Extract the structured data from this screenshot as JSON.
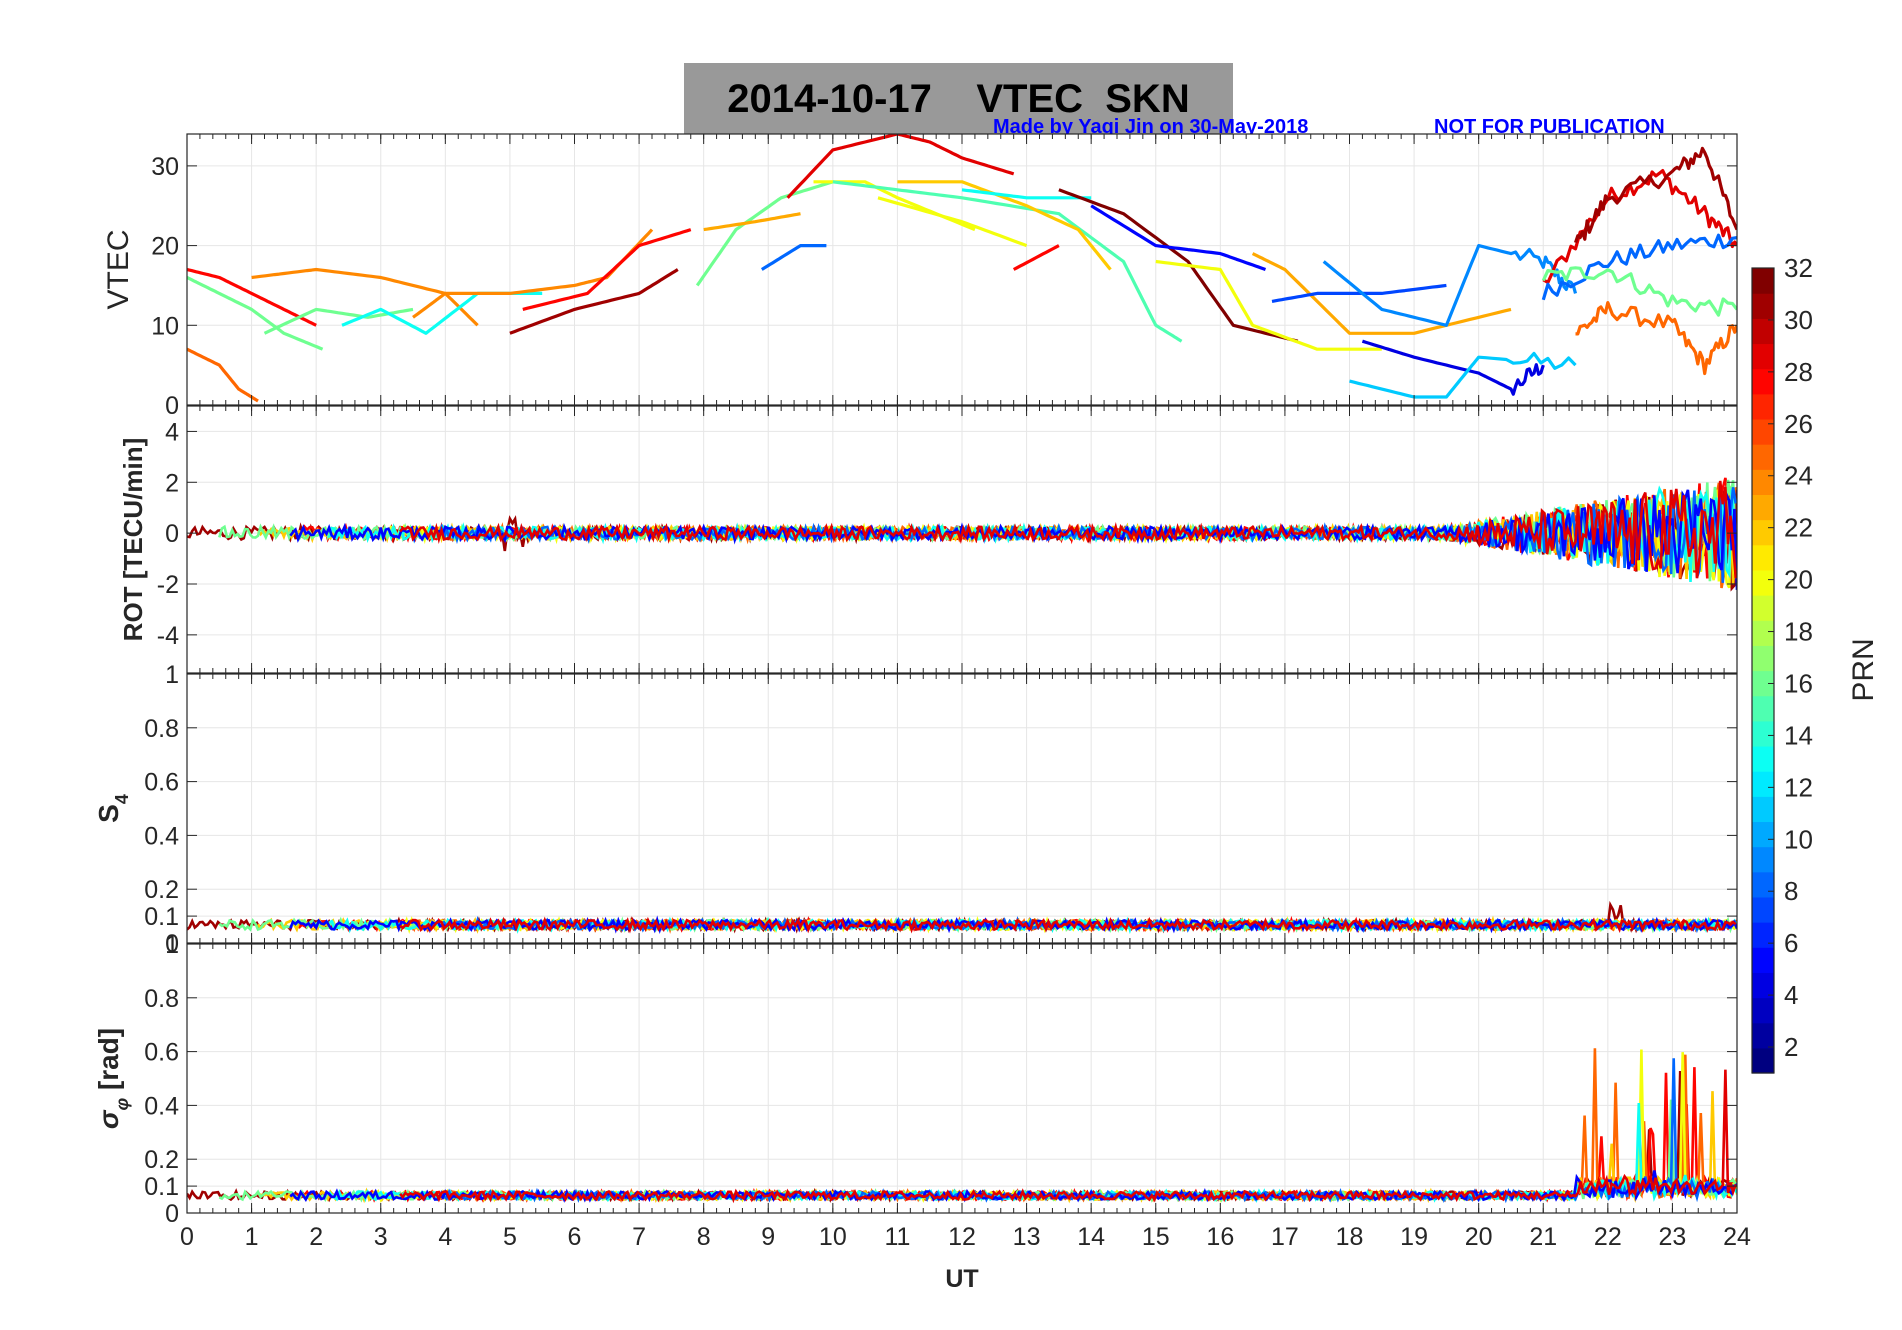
{
  "header": {
    "title_date": "2014-10-17",
    "title_text": "VTEC  SKN",
    "credit": "Made by Yaqi Jin on 30-May-2018",
    "notice": "NOT FOR PUBLICATION"
  },
  "colorbar": {
    "label": "PRN",
    "ticks": [
      2,
      4,
      6,
      8,
      10,
      12,
      14,
      16,
      18,
      20,
      22,
      24,
      26,
      28,
      30,
      32
    ],
    "range": [
      1,
      32
    ],
    "colormap": "jet"
  },
  "chart_data": [
    {
      "type": "line",
      "ylabel": "VTEC",
      "ylim": [
        0,
        34
      ],
      "yticks": [
        0,
        10,
        20,
        30
      ],
      "xlim": [
        0,
        24
      ],
      "grid": true,
      "series": [
        {
          "prn": 28,
          "x": [
            0,
            0.5,
            1,
            1.5,
            2
          ],
          "y": [
            17,
            16,
            14,
            12,
            10
          ]
        },
        {
          "prn": 16,
          "x": [
            0,
            0.5,
            1,
            1.5,
            2.1
          ],
          "y": [
            16,
            14,
            12,
            9,
            7
          ]
        },
        {
          "prn": 25,
          "x": [
            0,
            0.5,
            0.8,
            1.1
          ],
          "y": [
            7,
            5,
            2,
            0.5
          ]
        },
        {
          "prn": 24,
          "x": [
            1,
            2,
            3,
            4,
            4.5
          ],
          "y": [
            16,
            17,
            16,
            14,
            10
          ]
        },
        {
          "prn": 16,
          "x": [
            1.2,
            2,
            2.8,
            3.5
          ],
          "y": [
            9,
            12,
            11,
            12
          ]
        },
        {
          "prn": 13,
          "x": [
            2.4,
            3,
            3.7,
            4.5,
            5.5
          ],
          "y": [
            10,
            12,
            9,
            14,
            14
          ]
        },
        {
          "prn": 24,
          "x": [
            3.5,
            4,
            5,
            6,
            6.5,
            7.2
          ],
          "y": [
            11,
            14,
            14,
            15,
            16,
            22
          ]
        },
        {
          "prn": 31,
          "x": [
            5,
            6,
            7,
            7.6
          ],
          "y": [
            9,
            12,
            14,
            17
          ]
        },
        {
          "prn": 28,
          "x": [
            5.2,
            6.2,
            7,
            7.8
          ],
          "y": [
            12,
            14,
            20,
            22
          ]
        },
        {
          "prn": 16,
          "x": [
            7.9,
            8.5,
            9.2,
            10
          ],
          "y": [
            15,
            22,
            26,
            28
          ]
        },
        {
          "prn": 23,
          "x": [
            8,
            8.8,
            9.5
          ],
          "y": [
            22,
            23,
            24
          ]
        },
        {
          "prn": 8,
          "x": [
            8.9,
            9.5,
            9.9
          ],
          "y": [
            17,
            20,
            20
          ]
        },
        {
          "prn": 29,
          "x": [
            9.3,
            10,
            11,
            11.5,
            12,
            12.8
          ],
          "y": [
            26,
            32,
            34,
            33,
            31,
            29
          ]
        },
        {
          "prn": 20,
          "x": [
            9.7,
            10.5,
            11,
            12.2
          ],
          "y": [
            28,
            28,
            26,
            22
          ]
        },
        {
          "prn": 15,
          "x": [
            10,
            11,
            12,
            13.5,
            14.5,
            15,
            15.4
          ],
          "y": [
            28,
            27,
            26,
            24,
            18,
            10,
            8
          ]
        },
        {
          "prn": 22,
          "x": [
            11,
            12,
            13,
            13.8,
            14.3
          ],
          "y": [
            28,
            28,
            25,
            22,
            17
          ]
        },
        {
          "prn": 20,
          "x": [
            10.7,
            12,
            13
          ],
          "y": [
            26,
            23,
            20
          ]
        },
        {
          "prn": 28,
          "x": [
            12.8,
            13.5
          ],
          "y": [
            17,
            20
          ]
        },
        {
          "prn": 13,
          "x": [
            12,
            13,
            14
          ],
          "y": [
            27,
            26,
            26
          ]
        },
        {
          "prn": 32,
          "x": [
            13.5,
            14.5,
            15.5,
            16.2,
            17.2
          ],
          "y": [
            27,
            24,
            18,
            10,
            8
          ]
        },
        {
          "prn": 20,
          "x": [
            15,
            16,
            16.5,
            17.5,
            18.5
          ],
          "y": [
            18,
            17,
            10,
            7,
            7
          ]
        },
        {
          "prn": 5,
          "x": [
            14,
            15,
            16,
            16.7
          ],
          "y": [
            25,
            20,
            19,
            17
          ]
        },
        {
          "prn": 23,
          "x": [
            16.5,
            17,
            18,
            19,
            20.5
          ],
          "y": [
            19,
            17,
            9,
            9,
            12
          ]
        },
        {
          "prn": 7,
          "x": [
            16.8,
            17.5,
            18.5,
            19.5
          ],
          "y": [
            13,
            14,
            14,
            15
          ]
        },
        {
          "prn": 9,
          "x": [
            17.6,
            18.5,
            19.5,
            20,
            21,
            21.5
          ],
          "y": [
            18,
            12,
            10,
            20,
            18,
            14
          ]
        },
        {
          "prn": 4,
          "x": [
            18.2,
            19,
            20,
            20.5,
            21
          ],
          "y": [
            8,
            6,
            4,
            2,
            5
          ]
        },
        {
          "prn": 11,
          "x": [
            18,
            19,
            19.5,
            20,
            21.5
          ],
          "y": [
            3,
            1,
            1,
            6,
            5
          ]
        },
        {
          "prn": 29,
          "x": [
            21,
            22,
            22.8,
            23.5,
            24
          ],
          "y": [
            15,
            26,
            29,
            24,
            20
          ]
        },
        {
          "prn": 31,
          "x": [
            21.5,
            22,
            23,
            23.5,
            24
          ],
          "y": [
            20,
            26,
            29,
            32,
            22
          ]
        },
        {
          "prn": 8,
          "x": [
            21,
            22,
            23,
            24
          ],
          "y": [
            14,
            18,
            20,
            21
          ]
        },
        {
          "prn": 25,
          "x": [
            21.5,
            22,
            23,
            23.5,
            24
          ],
          "y": [
            9,
            12,
            10,
            5,
            10
          ]
        },
        {
          "prn": 16,
          "x": [
            21,
            22,
            23,
            24
          ],
          "y": [
            16,
            17,
            13,
            12
          ]
        }
      ]
    },
    {
      "type": "line",
      "ylabel": "ROT [TECU/min]",
      "ylim": [
        -5.5,
        5
      ],
      "yticks": [
        -4,
        -2,
        0,
        2,
        4
      ],
      "xlim": [
        0,
        24
      ],
      "grid": true
    },
    {
      "type": "line",
      "ylabel_main": "S",
      "ylabel_sub": "4",
      "ylim": [
        0,
        1
      ],
      "yticks": [
        0,
        0.1,
        0.2,
        0.4,
        0.6,
        0.8,
        1
      ],
      "ytick_labels": [
        "0",
        "0.1",
        "0.2",
        "0.4",
        "0.6",
        "0.8",
        "1"
      ],
      "xlim": [
        0,
        24
      ],
      "grid": true
    },
    {
      "type": "line",
      "ylabel_main": "σ",
      "ylabel_sub": "φ",
      "ylabel_unit": " [rad]",
      "ylim": [
        0,
        1
      ],
      "yticks": [
        0,
        0.1,
        0.2,
        0.4,
        0.6,
        0.8,
        1
      ],
      "ytick_labels": [
        "0",
        "0.1",
        "0.2",
        "0.4",
        "0.6",
        "0.8",
        "1"
      ],
      "xlabel": "UT",
      "xlim": [
        0,
        24
      ],
      "xticks": [
        0,
        1,
        2,
        3,
        4,
        5,
        6,
        7,
        8,
        9,
        10,
        11,
        12,
        13,
        14,
        15,
        16,
        17,
        18,
        19,
        20,
        21,
        22,
        23,
        24
      ],
      "grid": true
    }
  ]
}
